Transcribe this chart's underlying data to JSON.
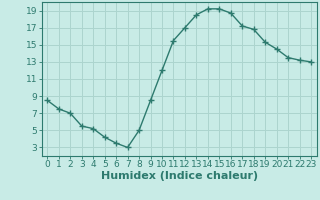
{
  "x": [
    0,
    1,
    2,
    3,
    4,
    5,
    6,
    7,
    8,
    9,
    10,
    11,
    12,
    13,
    14,
    15,
    16,
    17,
    18,
    19,
    20,
    21,
    22,
    23
  ],
  "y": [
    8.5,
    7.5,
    7.0,
    5.5,
    5.2,
    4.2,
    3.5,
    3.0,
    5.0,
    8.5,
    12.0,
    15.5,
    17.0,
    18.5,
    19.2,
    19.2,
    18.7,
    17.2,
    16.8,
    15.3,
    14.5,
    13.5,
    13.2,
    13.0
  ],
  "line_color": "#2d7a6e",
  "bg_color": "#c8ebe6",
  "grid_color": "#acd4ce",
  "xlabel": "Humidex (Indice chaleur)",
  "ylim": [
    2,
    20
  ],
  "xlim": [
    -0.5,
    23.5
  ],
  "yticks": [
    3,
    5,
    7,
    9,
    11,
    13,
    15,
    17,
    19
  ],
  "xticks": [
    0,
    1,
    2,
    3,
    4,
    5,
    6,
    7,
    8,
    9,
    10,
    11,
    12,
    13,
    14,
    15,
    16,
    17,
    18,
    19,
    20,
    21,
    22,
    23
  ],
  "marker": "+",
  "marker_size": 4,
  "line_width": 1.0,
  "xlabel_fontsize": 8,
  "tick_fontsize": 6.5,
  "tick_color": "#2d7a6e",
  "axis_color": "#2d7a6e"
}
